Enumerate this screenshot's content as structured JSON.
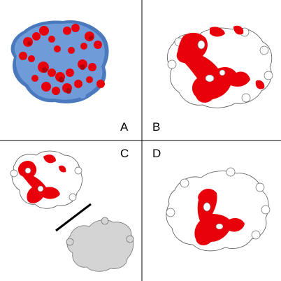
{
  "panels": [
    {
      "label": "A"
    },
    {
      "label": "B"
    },
    {
      "label": "C"
    },
    {
      "label": "D"
    }
  ],
  "colors": {
    "surface_blue": "#6f9bd8",
    "highlight_red": "#e8000b",
    "projection_grey": "#d4d4d4",
    "outline": "#555555"
  }
}
